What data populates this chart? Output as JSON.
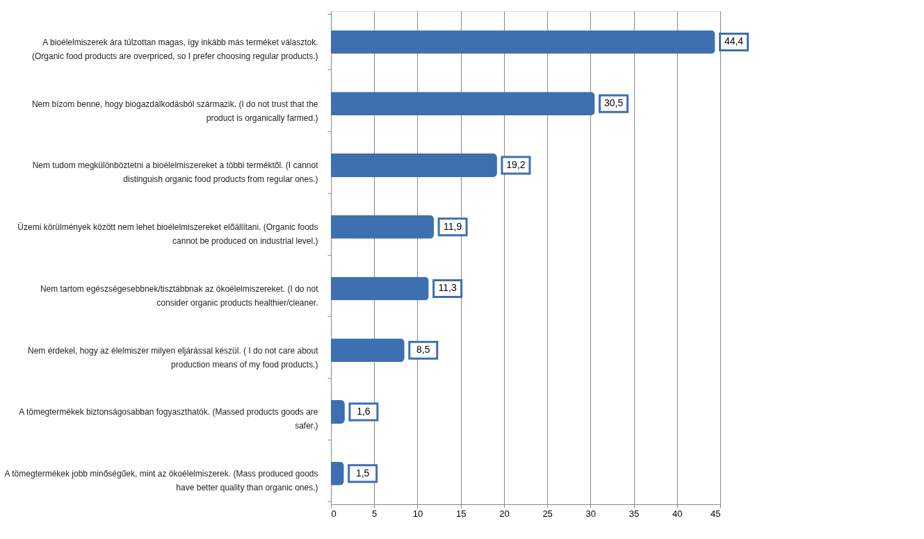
{
  "chart_data": {
    "type": "bar",
    "orientation": "horizontal",
    "categories": [
      "A bioélelmiszerek ára túlzottan magas, így inkább más terméket választok. (Organic food products are overpriced, so I prefer choosing regular products.)",
      "Nem bízom benne, hogy biogazdálkodásból származik. (I do not trust that the product is organically farmed.)",
      "Nem tudom megkülönböztetni a bioélelmiszereket a többi terméktől. (I cannot distinguish organic food products from regular ones.)",
      "Üzemi körülmények között nem lehet bioélelmiszereket előállítani. (Organic foods cannot be produced on industrial level.)",
      "Nem tartom egészségesebbnek/tisztábbnak az  ökoélelmiszereket. (I do not consider organic products healthier/cleaner.",
      "Nem érdekel, hogy az élelmiszer milyen eljárással készül. ( I do not care about production means of my food products.)",
      "A tömegtermékek biztonságosabban fogyaszthatók. (Massed products goods are safer.)",
      "A tömegtermékek jobb minőségűek, mint az ökoélelmiszerek. (Mass produced goods have better quality than organic ones.)"
    ],
    "values": [
      44.4,
      30.5,
      19.2,
      11.9,
      11.3,
      8.5,
      1.6,
      1.5
    ],
    "value_labels": [
      "44,4",
      "30,5",
      "19,2",
      "11,9",
      "11,3",
      "8,5",
      "1,6",
      "1,5"
    ],
    "color": "#3e6fb0",
    "xlim": [
      0,
      45
    ],
    "xticks": [
      0,
      5,
      10,
      15,
      20,
      25,
      30,
      35,
      40,
      45
    ],
    "grid": "x"
  }
}
